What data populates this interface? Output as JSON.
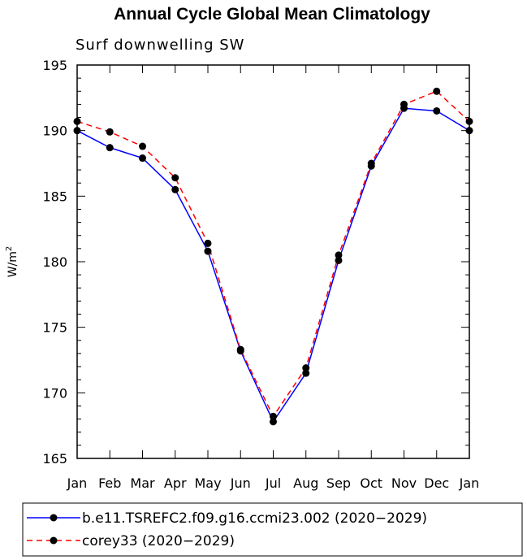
{
  "chart_data": {
    "type": "line",
    "title": "Annual Cycle Global Mean Climatology",
    "subtitle": "Surf downwelling SW",
    "ylabel_base": "W/m",
    "ylabel_sup": "2",
    "xlabel": "",
    "categories": [
      "Jan",
      "Feb",
      "Mar",
      "Apr",
      "May",
      "Jun",
      "Jul",
      "Aug",
      "Sep",
      "Oct",
      "Nov",
      "Dec",
      "Jan"
    ],
    "ylim": [
      165,
      195
    ],
    "yticks": [
      165,
      170,
      175,
      180,
      185,
      190,
      195
    ],
    "grid": false,
    "legend_position": "bottom",
    "series": [
      {
        "name": "b.e11.TSREFC2.f09.g16.ccmi23.002 (2020−2029)",
        "color": "#0000ff",
        "dash": "solid",
        "values": [
          190.0,
          188.7,
          187.9,
          185.5,
          180.8,
          173.2,
          167.8,
          171.5,
          180.1,
          187.3,
          191.7,
          191.5,
          190.0
        ]
      },
      {
        "name": "corey33 (2020−2029)",
        "color": "#ff0000",
        "dash": "dashed",
        "values": [
          190.7,
          189.9,
          188.8,
          186.4,
          181.4,
          173.3,
          168.2,
          171.9,
          180.5,
          187.5,
          192.0,
          193.0,
          190.7
        ]
      }
    ]
  }
}
